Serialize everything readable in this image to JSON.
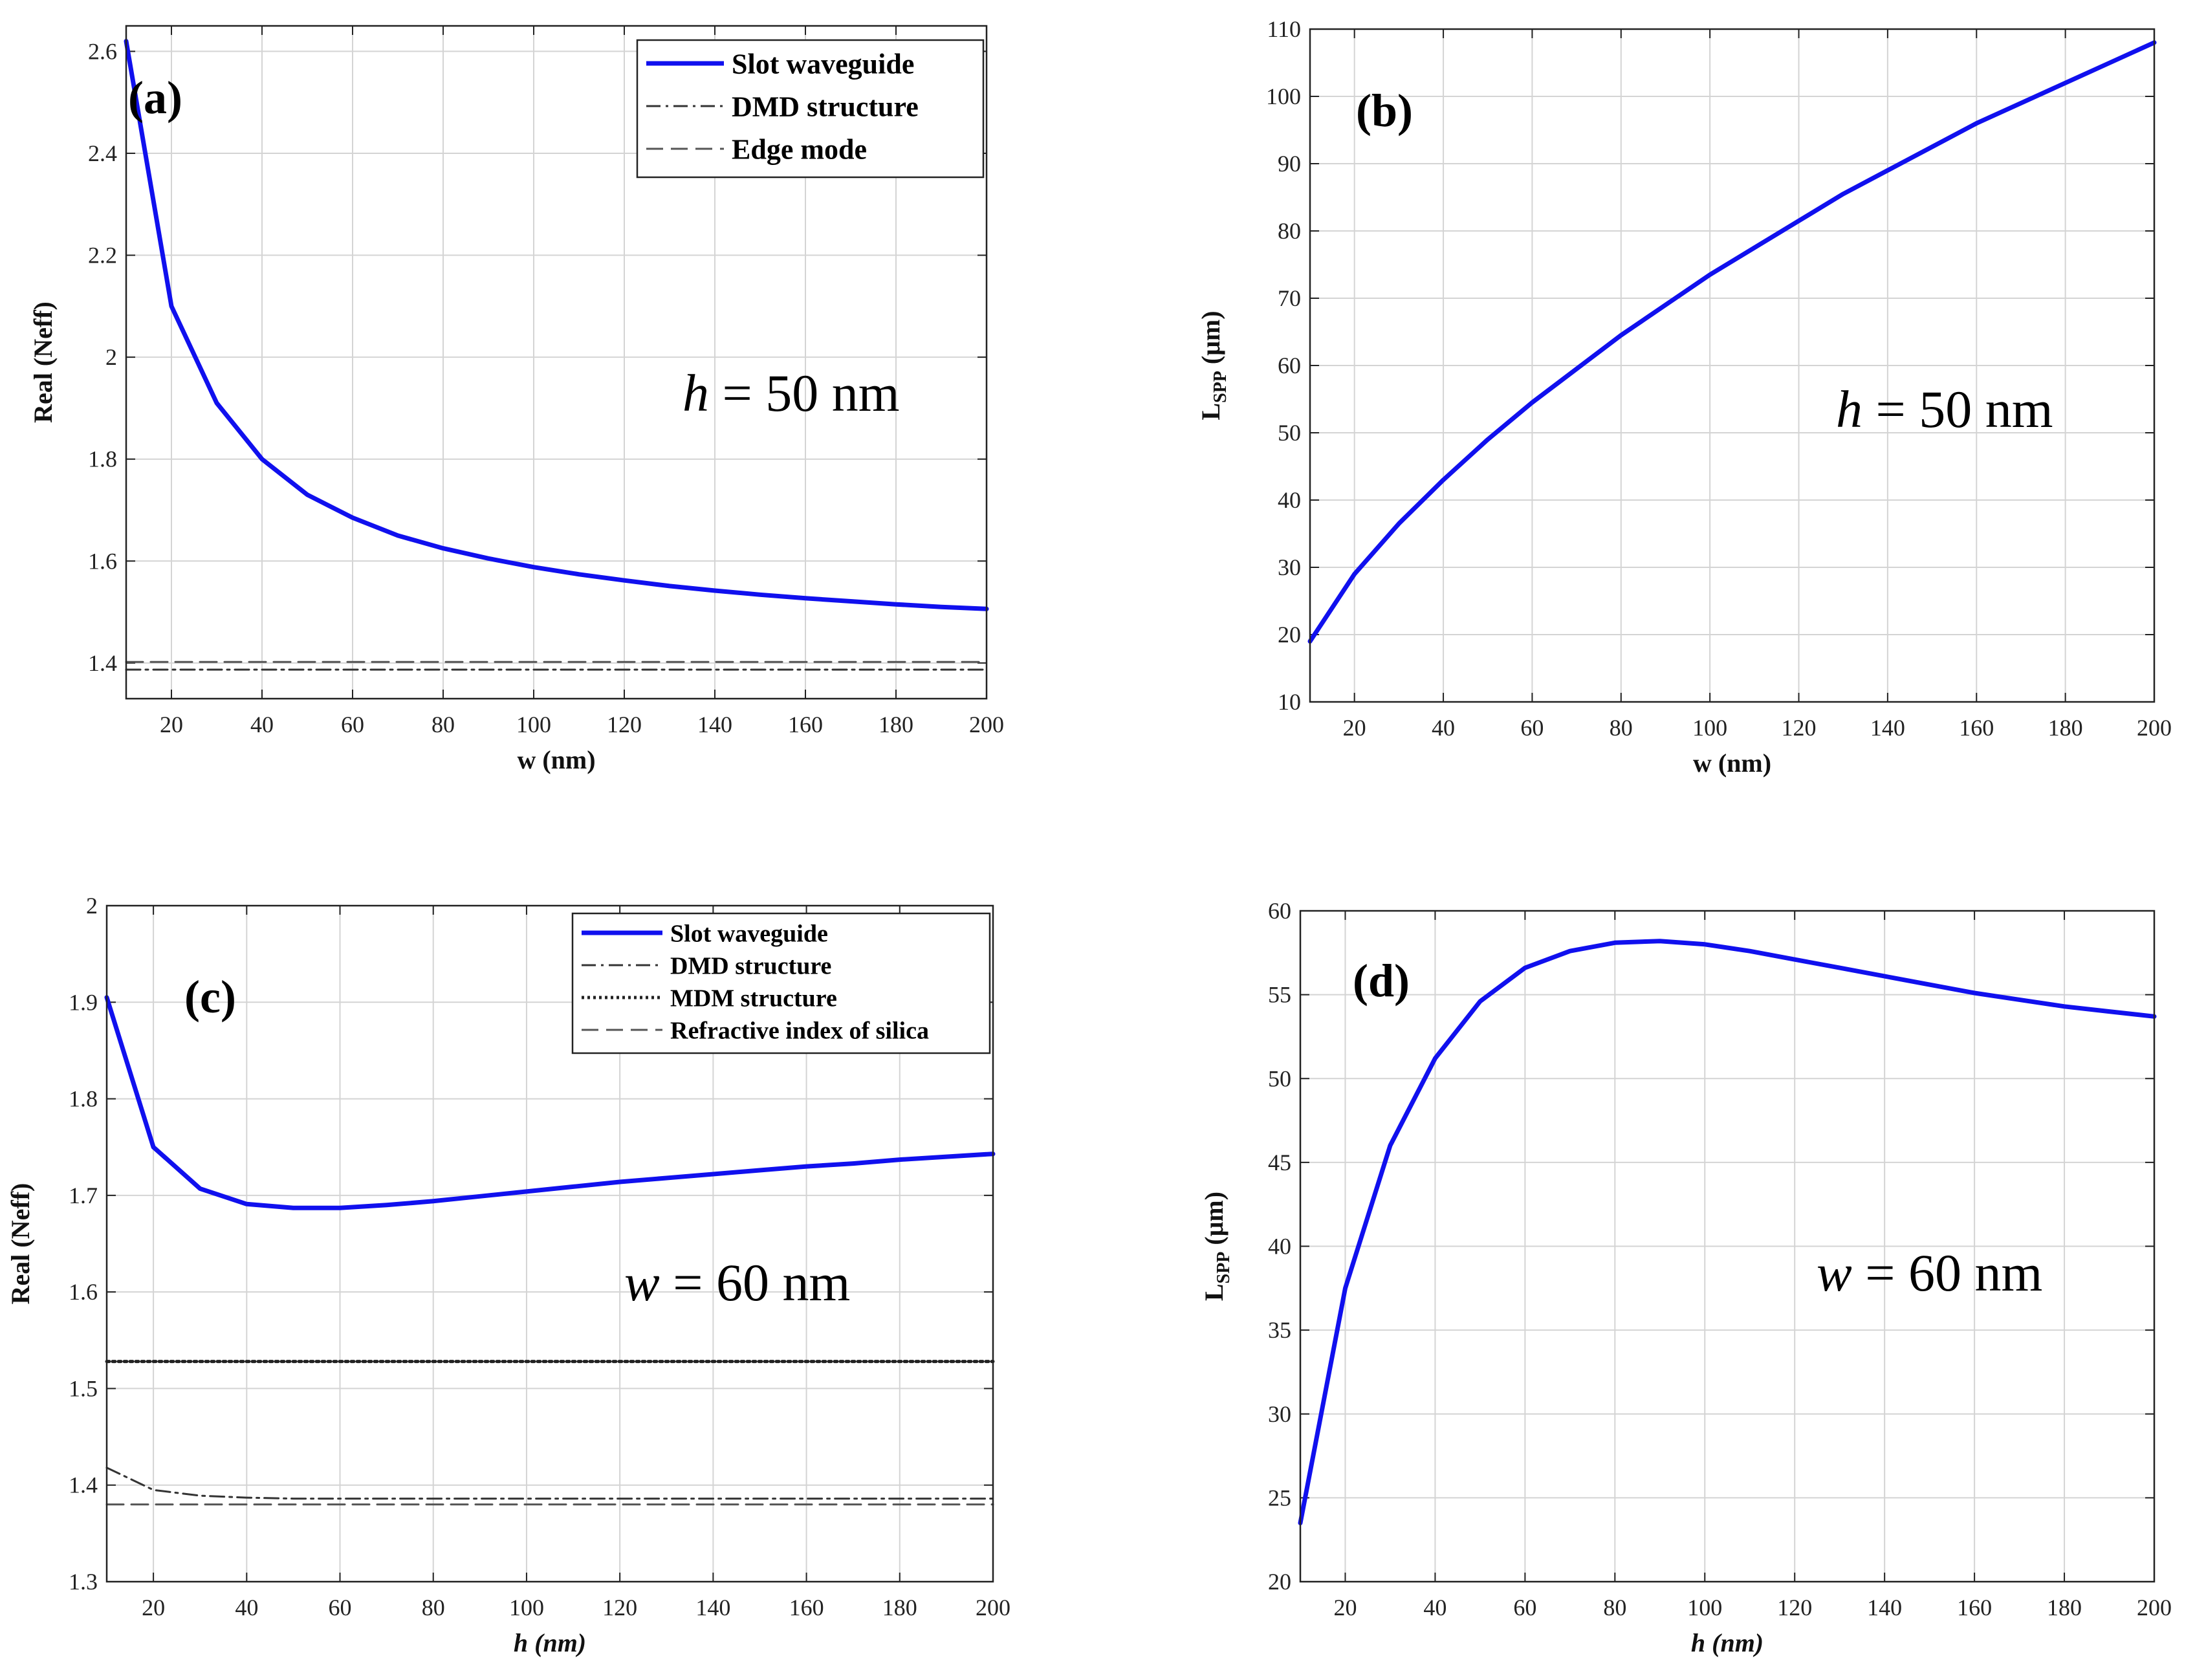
{
  "chart_data": [
    {
      "id": "a",
      "type": "line",
      "panel_label": "(a)",
      "xlabel": "w (nm)",
      "ylabel": "Real (Neff)",
      "xlim": [
        10,
        200
      ],
      "ylim": [
        1.33,
        2.65
      ],
      "xticks": [
        20,
        40,
        60,
        80,
        100,
        120,
        140,
        160,
        180,
        200
      ],
      "xtick_labels": [
        "20",
        "40",
        "60",
        "80",
        "100",
        "120",
        "140",
        "160",
        "180",
        "200"
      ],
      "yticks": [
        1.4,
        1.6,
        1.8,
        2.0,
        2.2,
        2.4,
        2.6
      ],
      "ytick_labels": [
        "1.4",
        "1.6",
        "1.8",
        "2",
        "2.2",
        "2.4",
        "2.6"
      ],
      "grid": true,
      "legend_position": "top-right",
      "annotation": {
        "var": "h",
        "text": " = 50 nm"
      },
      "series": [
        {
          "name": "Slot waveguide",
          "style": "solid-blue",
          "x": [
            10,
            20,
            30,
            40,
            50,
            60,
            70,
            80,
            90,
            100,
            110,
            120,
            130,
            140,
            150,
            160,
            170,
            180,
            190,
            200
          ],
          "y": [
            2.62,
            2.1,
            1.91,
            1.8,
            1.73,
            1.685,
            1.65,
            1.625,
            1.605,
            1.588,
            1.574,
            1.562,
            1.551,
            1.542,
            1.534,
            1.527,
            1.521,
            1.515,
            1.51,
            1.506
          ]
        },
        {
          "name": "DMD structure",
          "style": "dashdot",
          "x": [
            10,
            200
          ],
          "y": [
            1.387,
            1.387
          ]
        },
        {
          "name": "Edge mode",
          "style": "dashed",
          "x": [
            10,
            200
          ],
          "y": [
            1.402,
            1.402
          ]
        }
      ]
    },
    {
      "id": "b",
      "type": "line",
      "panel_label": "(b)",
      "xlabel": "w (nm)",
      "ylabel_main": "L",
      "ylabel_sub": "SPP",
      "ylabel_rest": " (μm)",
      "xlim": [
        10,
        200
      ],
      "ylim": [
        10,
        110
      ],
      "xticks": [
        20,
        40,
        60,
        80,
        100,
        120,
        140,
        160,
        180,
        200
      ],
      "xtick_labels": [
        "20",
        "40",
        "60",
        "80",
        "100",
        "120",
        "140",
        "160",
        "180",
        "200"
      ],
      "yticks": [
        10,
        20,
        30,
        40,
        50,
        60,
        70,
        80,
        90,
        100,
        110
      ],
      "ytick_labels": [
        "10",
        "20",
        "30",
        "40",
        "50",
        "60",
        "70",
        "80",
        "90",
        "100",
        "110"
      ],
      "grid": true,
      "annotation": {
        "var": "h",
        "text": " = 50 nm"
      },
      "series": [
        {
          "name": "LSPP",
          "style": "solid-blue",
          "x": [
            10,
            20,
            30,
            40,
            50,
            60,
            70,
            80,
            90,
            100,
            110,
            120,
            130,
            140,
            150,
            160,
            170,
            180,
            190,
            200
          ],
          "y": [
            19,
            29,
            36.5,
            43,
            49,
            54.5,
            59.5,
            64.5,
            69,
            73.5,
            77.5,
            81.5,
            85.5,
            89,
            92.5,
            96,
            99,
            102,
            105,
            108
          ]
        }
      ]
    },
    {
      "id": "c",
      "type": "line",
      "panel_label": "(c)",
      "xlabel": "h (nm)",
      "ylabel": "Real (Neff)",
      "xlim": [
        10,
        200
      ],
      "ylim": [
        1.3,
        2.0
      ],
      "xticks": [
        20,
        40,
        60,
        80,
        100,
        120,
        140,
        160,
        180,
        200
      ],
      "xtick_labels": [
        "20",
        "40",
        "60",
        "80",
        "100",
        "120",
        "140",
        "160",
        "180",
        "200"
      ],
      "yticks": [
        1.3,
        1.4,
        1.5,
        1.6,
        1.7,
        1.8,
        1.9,
        2.0
      ],
      "ytick_labels": [
        "1.3",
        "1.4",
        "1.5",
        "1.6",
        "1.7",
        "1.8",
        "1.9",
        "2"
      ],
      "grid": true,
      "legend_position": "top-right",
      "annotation": {
        "var": "w",
        "text": " = 60 nm"
      },
      "series": [
        {
          "name": "Slot waveguide",
          "style": "solid-blue",
          "x": [
            10,
            20,
            30,
            40,
            50,
            60,
            70,
            80,
            90,
            100,
            110,
            120,
            130,
            140,
            150,
            160,
            170,
            180,
            190,
            200
          ],
          "y": [
            1.905,
            1.75,
            1.707,
            1.691,
            1.687,
            1.687,
            1.69,
            1.694,
            1.699,
            1.704,
            1.709,
            1.714,
            1.718,
            1.722,
            1.726,
            1.73,
            1.733,
            1.737,
            1.74,
            1.743
          ]
        },
        {
          "name": "DMD structure",
          "style": "dashdot",
          "x": [
            10,
            20,
            30,
            40,
            50,
            60,
            80,
            100,
            120,
            140,
            160,
            180,
            200
          ],
          "y": [
            1.418,
            1.395,
            1.389,
            1.387,
            1.386,
            1.386,
            1.386,
            1.386,
            1.386,
            1.386,
            1.386,
            1.386,
            1.386
          ]
        },
        {
          "name": "MDM structure",
          "style": "dotted",
          "x": [
            10,
            200
          ],
          "y": [
            1.528,
            1.528
          ]
        },
        {
          "name": "Refractive index of silica",
          "style": "dashed",
          "x": [
            10,
            200
          ],
          "y": [
            1.38,
            1.38
          ]
        }
      ]
    },
    {
      "id": "d",
      "type": "line",
      "panel_label": "(d)",
      "xlabel": "h (nm)",
      "ylabel_main": "L",
      "ylabel_sub": "SPP",
      "ylabel_rest": " (μm)",
      "xlim": [
        10,
        200
      ],
      "ylim": [
        20,
        60
      ],
      "xticks": [
        20,
        40,
        60,
        80,
        100,
        120,
        140,
        160,
        180,
        200
      ],
      "xtick_labels": [
        "20",
        "40",
        "60",
        "80",
        "100",
        "120",
        "140",
        "160",
        "180",
        "200"
      ],
      "yticks": [
        20,
        25,
        30,
        35,
        40,
        45,
        50,
        55,
        60
      ],
      "ytick_labels": [
        "20",
        "25",
        "30",
        "35",
        "40",
        "45",
        "50",
        "55",
        "60"
      ],
      "grid": true,
      "annotation": {
        "var": "w",
        "text": " = 60 nm"
      },
      "series": [
        {
          "name": "LSPP",
          "style": "solid-blue",
          "x": [
            10,
            20,
            30,
            40,
            50,
            60,
            70,
            80,
            90,
            100,
            110,
            120,
            130,
            140,
            150,
            160,
            170,
            180,
            190,
            200
          ],
          "y": [
            23.5,
            37.5,
            46,
            51.2,
            54.6,
            56.6,
            57.6,
            58.1,
            58.2,
            58.0,
            57.6,
            57.1,
            56.6,
            56.1,
            55.6,
            55.1,
            54.7,
            54.3,
            54.0,
            53.7
          ]
        }
      ]
    }
  ]
}
